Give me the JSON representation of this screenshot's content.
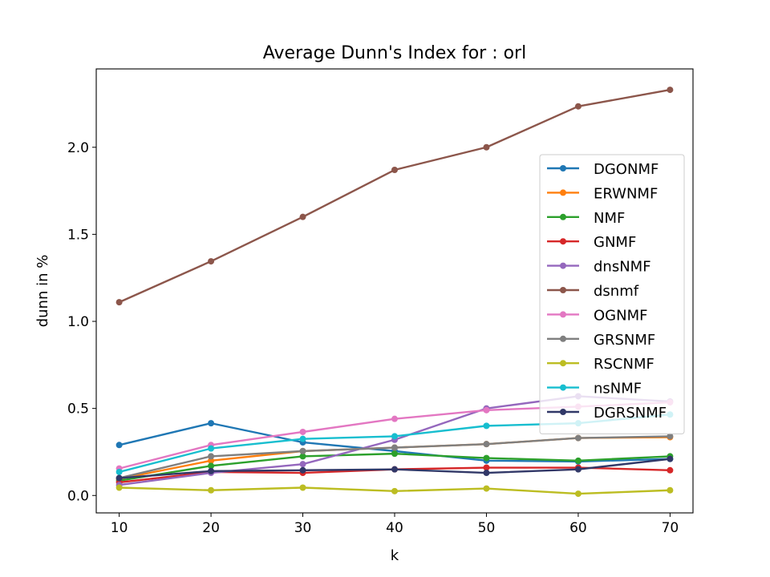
{
  "chart_data": {
    "type": "line",
    "title": "Average Dunn's Index for : orl",
    "xlabel": "k",
    "ylabel": "dunn in %",
    "x": [
      10,
      20,
      30,
      40,
      50,
      60,
      70
    ],
    "xlim": [
      7.5,
      72.5
    ],
    "ylim": [
      -0.1,
      2.45
    ],
    "xticks": [
      "10",
      "20",
      "30",
      "40",
      "50",
      "60",
      "70"
    ],
    "yticks": [
      "0.0",
      "0.5",
      "1.0",
      "1.5",
      "2.0"
    ],
    "grid": false,
    "legend_position": "center-right",
    "series": [
      {
        "name": "DGONMF",
        "color": "#1f77b4",
        "values": [
          0.29,
          0.415,
          0.305,
          0.255,
          0.2,
          0.195,
          0.21
        ]
      },
      {
        "name": "ERWNMF",
        "color": "#ff7f0e",
        "values": [
          0.095,
          0.2,
          0.255,
          0.275,
          0.295,
          0.33,
          0.335
        ]
      },
      {
        "name": "NMF",
        "color": "#2ca02c",
        "values": [
          0.085,
          0.17,
          0.225,
          0.24,
          0.215,
          0.2,
          0.225
        ]
      },
      {
        "name": "GNMF",
        "color": "#d62728",
        "values": [
          0.075,
          0.135,
          0.13,
          0.15,
          0.16,
          0.16,
          0.145
        ]
      },
      {
        "name": "dnsNMF",
        "color": "#9467bd",
        "values": [
          0.06,
          0.13,
          0.18,
          0.32,
          0.5,
          0.57,
          0.54
        ]
      },
      {
        "name": "dsnmf",
        "color": "#8c564b",
        "values": [
          1.11,
          1.345,
          1.6,
          1.87,
          2.0,
          2.235,
          2.33
        ]
      },
      {
        "name": "OGNMF",
        "color": "#e377c2",
        "values": [
          0.155,
          0.29,
          0.365,
          0.44,
          0.49,
          0.51,
          0.535
        ]
      },
      {
        "name": "GRSNMF",
        "color": "#7f7f7f",
        "values": [
          0.1,
          0.225,
          0.255,
          0.275,
          0.295,
          0.33,
          0.34
        ]
      },
      {
        "name": "RSCNMF",
        "color": "#bcbd22",
        "values": [
          0.045,
          0.03,
          0.045,
          0.025,
          0.04,
          0.01,
          0.03
        ]
      },
      {
        "name": "nsNMF",
        "color": "#17becf",
        "values": [
          0.135,
          0.27,
          0.325,
          0.34,
          0.4,
          0.415,
          0.465
        ]
      },
      {
        "name": "DGRSNMF",
        "color": "#313868",
        "values": [
          0.1,
          0.14,
          0.145,
          0.15,
          0.13,
          0.15,
          0.21
        ]
      }
    ]
  }
}
